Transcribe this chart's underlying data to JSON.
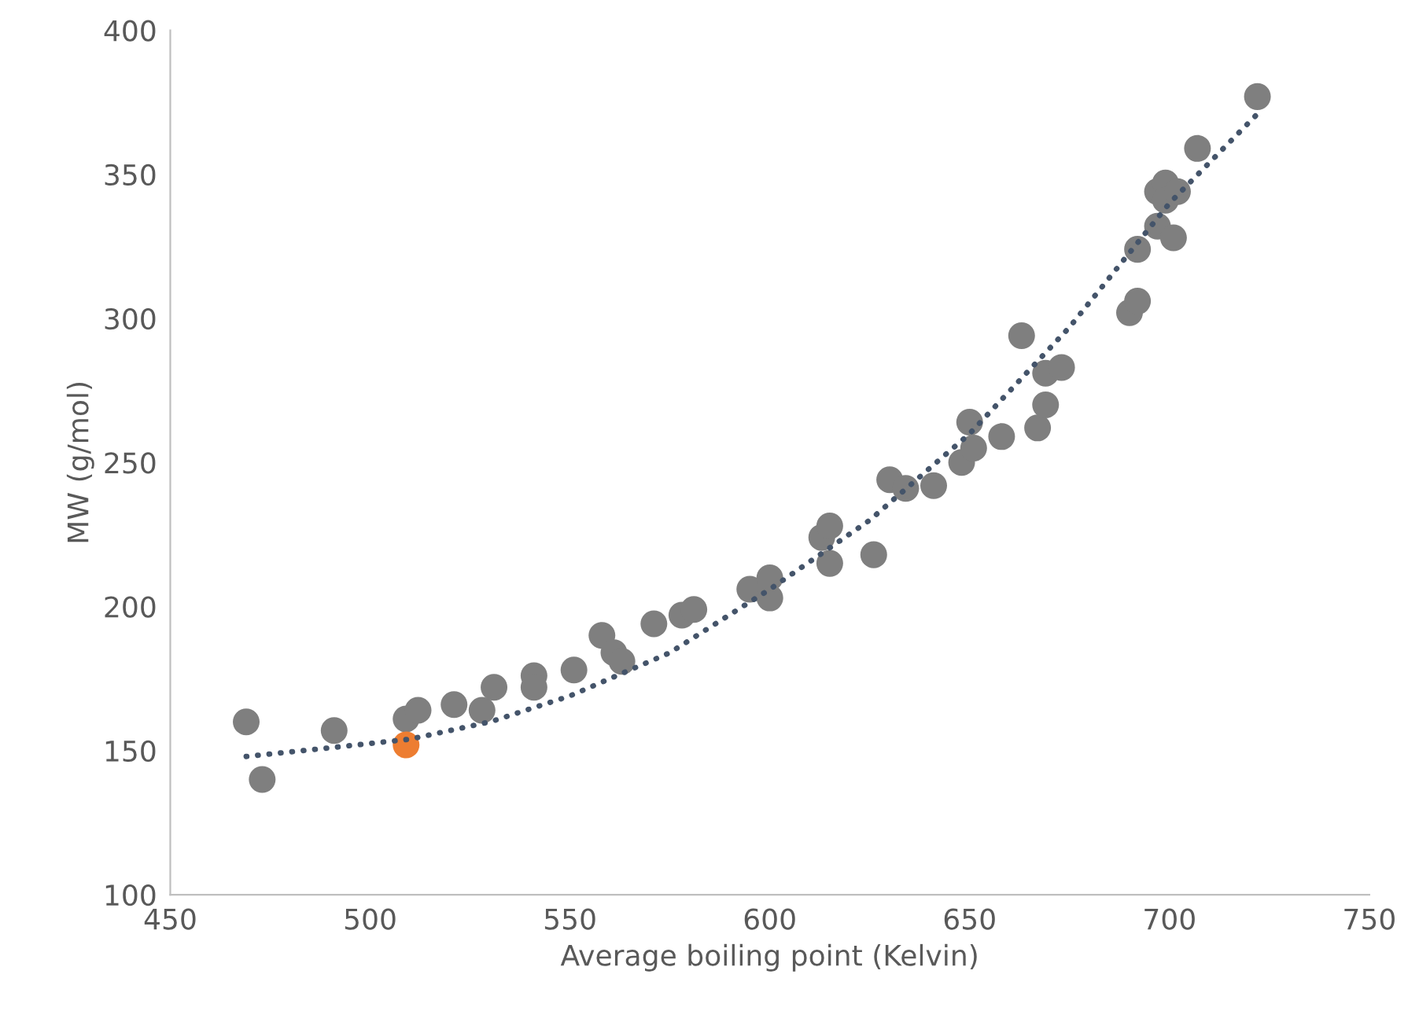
{
  "chart_data": {
    "type": "scatter",
    "xlabel": "Average boiling point (Kelvin)",
    "ylabel": "MW (g/mol)",
    "xlim": [
      450,
      750
    ],
    "xticks": [
      450,
      500,
      550,
      600,
      650,
      700,
      750
    ],
    "ylim": [
      100,
      400
    ],
    "yticks": [
      100,
      150,
      200,
      250,
      300,
      350,
      400
    ],
    "grid": false,
    "legend": false,
    "marker": "circle",
    "series": [
      {
        "type": "line",
        "color": "#44546a",
        "line_style": "dotted",
        "marker": "none",
        "x": [
          469,
          490,
          510,
          530,
          550,
          575,
          600,
          625,
          650,
          675,
          700,
          722
        ],
        "values": [
          148,
          151,
          154,
          160,
          169,
          184,
          206,
          230,
          260,
          297,
          340,
          371
        ]
      },
      {
        "color": "#7f7f7f",
        "x": [
          469,
          473,
          491,
          509,
          512,
          521,
          528,
          531,
          541,
          541,
          551,
          558,
          561,
          563,
          571,
          578,
          581,
          595,
          600,
          600,
          613,
          615,
          615,
          626,
          630,
          634,
          641,
          648,
          650,
          651,
          658,
          663,
          667,
          669,
          669,
          673,
          690,
          692,
          692,
          697,
          697,
          699,
          699,
          701,
          702,
          707,
          722
        ],
        "values": [
          160,
          140,
          157,
          161,
          164,
          166,
          164,
          172,
          176,
          172,
          178,
          190,
          184,
          181,
          194,
          197,
          199,
          206,
          203,
          210,
          224,
          228,
          215,
          218,
          244,
          241,
          242,
          250,
          264,
          255,
          259,
          294,
          262,
          270,
          281,
          283,
          302,
          306,
          324,
          332,
          344,
          347,
          341,
          328,
          344,
          359,
          377
        ]
      },
      {
        "color": "#ed7d31",
        "x": [
          509
        ],
        "values": [
          152
        ]
      }
    ]
  }
}
